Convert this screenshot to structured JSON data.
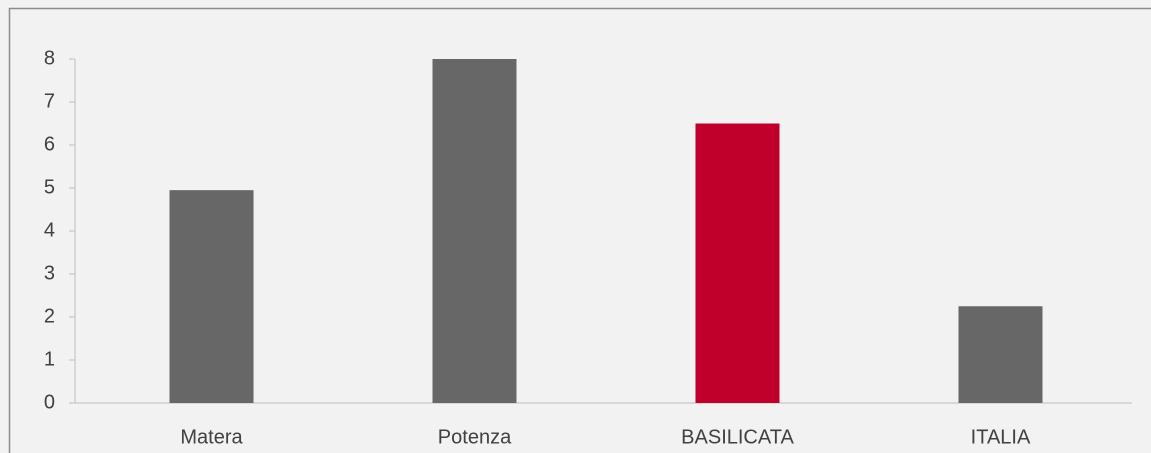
{
  "chart_data": {
    "type": "bar",
    "categories": [
      "Matera",
      "Potenza",
      "BASILICATA",
      "ITALIA"
    ],
    "values": [
      4.95,
      8,
      6.5,
      2.25
    ],
    "colors": [
      "#676767",
      "#676767",
      "#c0002a",
      "#676767"
    ],
    "ylim": [
      0,
      8
    ],
    "yticks": [
      0,
      1,
      2,
      3,
      4,
      5,
      6,
      7,
      8
    ],
    "grid": false
  }
}
